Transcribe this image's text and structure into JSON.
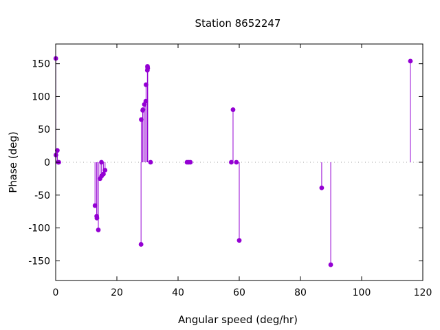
{
  "chart_data": {
    "type": "scatter",
    "style": "impulses-with-points",
    "title": "Station 8652247",
    "xlabel": "Angular speed (deg/hr)",
    "ylabel": "Phase (deg)",
    "xlim": [
      0,
      120
    ],
    "ylim": [
      -180,
      180
    ],
    "xticks": [
      0,
      20,
      40,
      60,
      80,
      100,
      120
    ],
    "yticks": [
      -150,
      -100,
      -50,
      0,
      50,
      100,
      150
    ],
    "grid": false,
    "zero_line": true,
    "color": "#9400d3",
    "points": [
      {
        "x": 0.04,
        "y": 158
      },
      {
        "x": 0.08,
        "y": 11
      },
      {
        "x": 0.54,
        "y": 18
      },
      {
        "x": 0.82,
        "y": 0
      },
      {
        "x": 1.02,
        "y": 0
      },
      {
        "x": 12.85,
        "y": -66
      },
      {
        "x": 13.4,
        "y": -82
      },
      {
        "x": 13.47,
        "y": -85
      },
      {
        "x": 13.94,
        "y": -103
      },
      {
        "x": 14.5,
        "y": -25
      },
      {
        "x": 14.96,
        "y": 0
      },
      {
        "x": 15.0,
        "y": -21
      },
      {
        "x": 15.59,
        "y": -18
      },
      {
        "x": 16.14,
        "y": -12
      },
      {
        "x": 27.9,
        "y": -125
      },
      {
        "x": 27.97,
        "y": 65
      },
      {
        "x": 28.44,
        "y": 79
      },
      {
        "x": 28.51,
        "y": 80
      },
      {
        "x": 28.99,
        "y": 88
      },
      {
        "x": 29.46,
        "y": 93
      },
      {
        "x": 29.53,
        "y": 118
      },
      {
        "x": 29.96,
        "y": 140
      },
      {
        "x": 30.0,
        "y": 146
      },
      {
        "x": 30.04,
        "y": 144
      },
      {
        "x": 30.08,
        "y": 143
      },
      {
        "x": 31.02,
        "y": 0
      },
      {
        "x": 42.93,
        "y": 0
      },
      {
        "x": 43.48,
        "y": 0
      },
      {
        "x": 44.03,
        "y": 0
      },
      {
        "x": 57.4,
        "y": 0
      },
      {
        "x": 57.97,
        "y": 80
      },
      {
        "x": 59.07,
        "y": 0
      },
      {
        "x": 60.0,
        "y": -119
      },
      {
        "x": 86.95,
        "y": -39
      },
      {
        "x": 89.9,
        "y": -156
      },
      {
        "x": 115.94,
        "y": 154
      }
    ]
  }
}
